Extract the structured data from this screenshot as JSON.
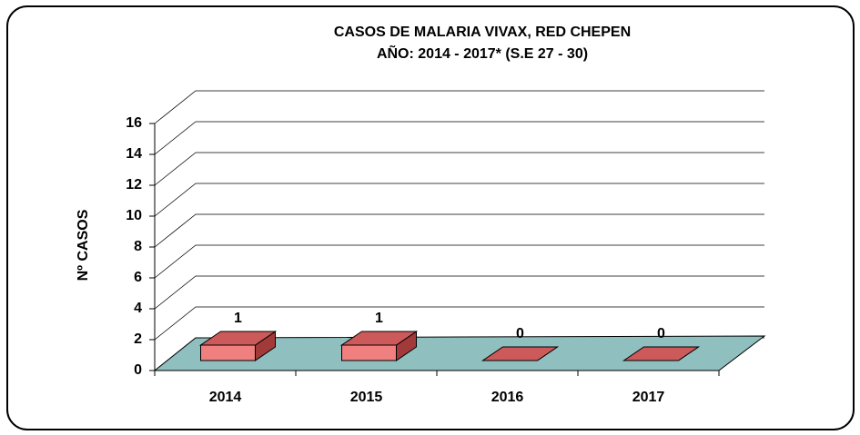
{
  "chart_data": {
    "type": "bar3d",
    "title": [
      "CASOS DE MALARIA VIVAX, RED CHEPEN",
      "AÑO: 2014 - 2017* (S.E 27 - 30)"
    ],
    "y_label": "Nº CASOS",
    "categories": [
      "2014",
      "2015",
      "2016",
      "2017"
    ],
    "values": [
      1,
      1,
      0,
      0
    ],
    "color": "#f08080",
    "floor_color": "#8fbfbf",
    "ylim": [
      0,
      16
    ],
    "yticks": [
      0,
      2,
      4,
      6,
      8,
      10,
      12,
      14,
      16
    ],
    "grid": true
  }
}
